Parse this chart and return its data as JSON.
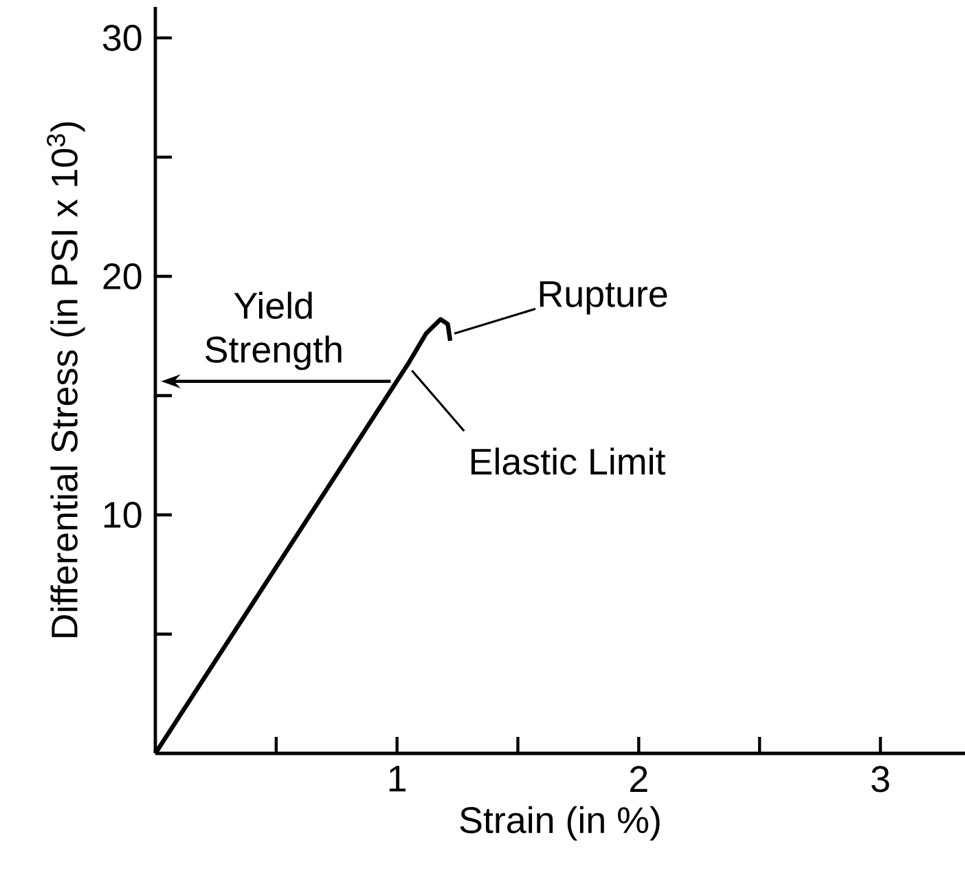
{
  "chart_data": {
    "type": "line",
    "xlabel": "Strain (in %)",
    "ylabel": "Differential Stress (in PSI x 10$^{3}$)",
    "series": [
      {
        "color": "#000000",
        "x": [
          0,
          1.05,
          1.12,
          1.18,
          1.21,
          1.22
        ],
        "values": [
          0,
          16.4,
          17.6,
          18.2,
          18.0,
          17.3
        ]
      }
    ],
    "xlim": [
      0,
      3.35
    ],
    "ylim": [
      0,
      31.3
    ],
    "xticks": [
      {
        "value": 0.5,
        "label": null
      },
      1,
      {
        "value": 1.5,
        "label": null
      },
      2,
      {
        "value": 2.5,
        "label": null
      },
      3
    ],
    "yticks": [
      {
        "value": 5,
        "label": null
      },
      10,
      {
        "value": 15,
        "label": null
      },
      20,
      {
        "value": 25,
        "label": null
      },
      30
    ],
    "annotations": [
      {
        "text": "Yield Strength",
        "x": 0.98,
        "y": 15.6
      },
      {
        "text": "Rupture",
        "x": 1.22,
        "y": 17.6
      },
      {
        "text": "Elastic Limit",
        "x": 1.05,
        "y": 16.4
      }
    ],
    "grid": false,
    "marker": "none",
    "line_style": "solid"
  }
}
